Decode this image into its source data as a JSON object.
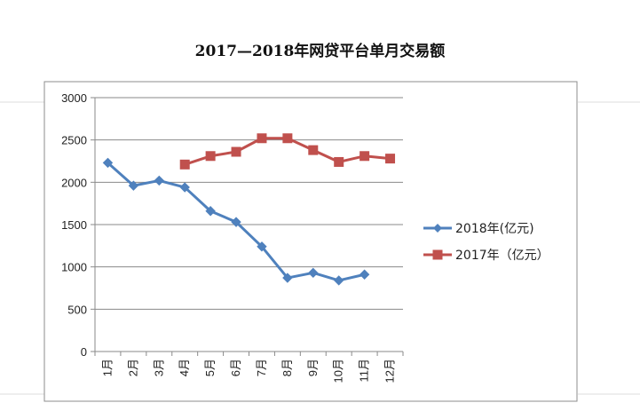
{
  "chart_data": {
    "type": "line",
    "title": "2017—2018年网贷平台单月交易额",
    "categories": [
      "1月",
      "2月",
      "3月",
      "4月",
      "5月",
      "6月",
      "7月",
      "8月",
      "9月",
      "10月",
      "11月",
      "12月"
    ],
    "ylim": [
      0,
      3000
    ],
    "yticks": [
      0,
      500,
      1000,
      1500,
      2000,
      2500,
      3000
    ],
    "grid": true,
    "legend_position": "right",
    "series": [
      {
        "name": "2018年(亿元)",
        "color": "#4F81BD",
        "marker": "diamond",
        "values": [
          2230,
          1960,
          2020,
          1940,
          1660,
          1530,
          1240,
          870,
          930,
          840,
          910,
          null
        ]
      },
      {
        "name": "2017年（亿元）",
        "color": "#C0504D",
        "marker": "square",
        "values": [
          null,
          null,
          null,
          2210,
          2310,
          2360,
          2520,
          2520,
          2380,
          2240,
          2310,
          2280
        ]
      }
    ]
  }
}
